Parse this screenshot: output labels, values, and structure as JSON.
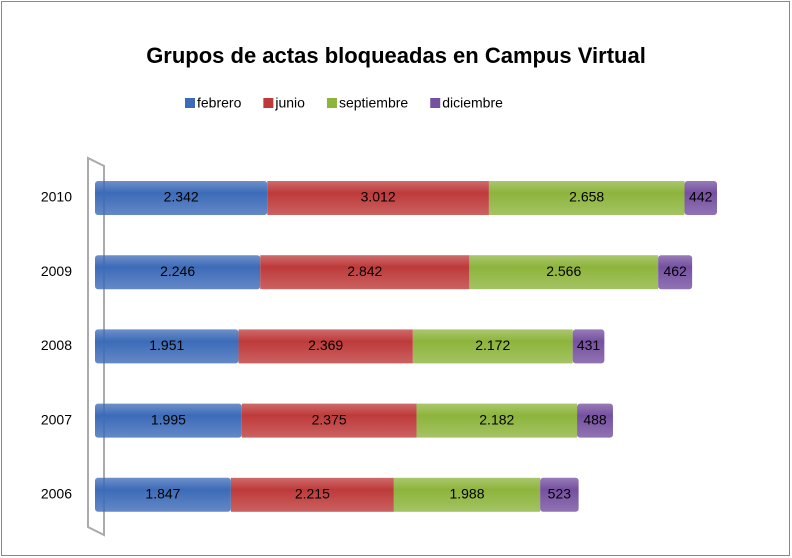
{
  "chart_data": {
    "type": "stacked-bar-horizontal",
    "title": "Grupos de actas bloqueadas  en Campus Virtual",
    "categories": [
      "2010",
      "2009",
      "2008",
      "2007",
      "2006"
    ],
    "series": [
      {
        "name": "febrero",
        "color": "#3d6bb8",
        "values": [
          2342,
          2246,
          1951,
          1995,
          1847
        ],
        "value_labels": [
          "2.342",
          "2.246",
          "1.951",
          "1.995",
          "1.847"
        ]
      },
      {
        "name": "junio",
        "color": "#be3a3a",
        "values": [
          3012,
          2842,
          2369,
          2375,
          2215
        ],
        "value_labels": [
          "3.012",
          "2.842",
          "2.369",
          "2.375",
          "2.215"
        ]
      },
      {
        "name": "septiembre",
        "color": "#8db43c",
        "values": [
          2658,
          2566,
          2172,
          2182,
          1988
        ],
        "value_labels": [
          "2.658",
          "2.566",
          "2.172",
          "2.182",
          "1.988"
        ]
      },
      {
        "name": "diciembre",
        "color": "#7550a0",
        "values": [
          442,
          462,
          431,
          488,
          523
        ],
        "value_labels": [
          "442",
          "462",
          "431",
          "488",
          "523"
        ]
      }
    ],
    "legend": "top"
  }
}
